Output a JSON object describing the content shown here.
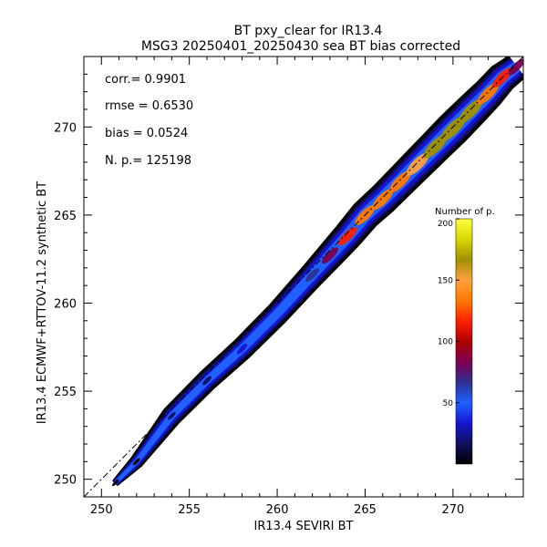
{
  "chart_data": {
    "type": "heatmap",
    "title": "BT pxy_clear for IR13.4",
    "subtitle": "MSG3 20250401_20250430 sea BT bias corrected",
    "xlabel": "IR13.4 SEVIRI BT",
    "ylabel": "IR13.4 ECMWF+RTTOV-11.2 synthetic BT",
    "xlim": [
      249,
      274
    ],
    "ylim": [
      249,
      274
    ],
    "x_ticks": [
      "250",
      "255",
      "260",
      "265",
      "270"
    ],
    "y_ticks": [
      "250",
      "255",
      "260",
      "265",
      "270"
    ],
    "stats": {
      "corr": "corr.= 0.9901",
      "rmse": "rmse = 0.6530",
      "bias": "bias = 0.0524",
      "np": "N. p.=  125198"
    },
    "colorbar": {
      "title": "Number of p.",
      "range": [
        0,
        200
      ],
      "ticks": [
        "50",
        "100",
        "150",
        "200"
      ],
      "colors": [
        "#000000",
        "#101060",
        "#1515d0",
        "#2060ff",
        "#303090",
        "#7a0050",
        "#b00000",
        "#ff2000",
        "#ff7a00",
        "#ffa040",
        "#a09000",
        "#d8d800",
        "#ffff40"
      ]
    },
    "one_to_one_line": true,
    "density_ridge": [
      {
        "x": 250.8,
        "y": 249.8,
        "count": 2
      },
      {
        "x": 252.0,
        "y": 251.0,
        "count": 5
      },
      {
        "x": 254.0,
        "y": 253.6,
        "count": 12
      },
      {
        "x": 256.0,
        "y": 255.6,
        "count": 22
      },
      {
        "x": 258.0,
        "y": 257.4,
        "count": 35
      },
      {
        "x": 260.0,
        "y": 259.4,
        "count": 45
      },
      {
        "x": 262.0,
        "y": 261.6,
        "count": 65
      },
      {
        "x": 263.0,
        "y": 262.7,
        "count": 90
      },
      {
        "x": 264.0,
        "y": 263.8,
        "count": 110
      },
      {
        "x": 265.0,
        "y": 265.0,
        "count": 125
      },
      {
        "x": 266.0,
        "y": 265.9,
        "count": 135
      },
      {
        "x": 267.0,
        "y": 266.9,
        "count": 140
      },
      {
        "x": 268.0,
        "y": 267.9,
        "count": 150
      },
      {
        "x": 269.0,
        "y": 268.9,
        "count": 160
      },
      {
        "x": 270.0,
        "y": 269.9,
        "count": 170
      },
      {
        "x": 271.0,
        "y": 270.9,
        "count": 160
      },
      {
        "x": 272.0,
        "y": 271.9,
        "count": 140
      },
      {
        "x": 272.8,
        "y": 272.8,
        "count": 120
      },
      {
        "x": 273.6,
        "y": 273.4,
        "count": 90
      }
    ]
  }
}
